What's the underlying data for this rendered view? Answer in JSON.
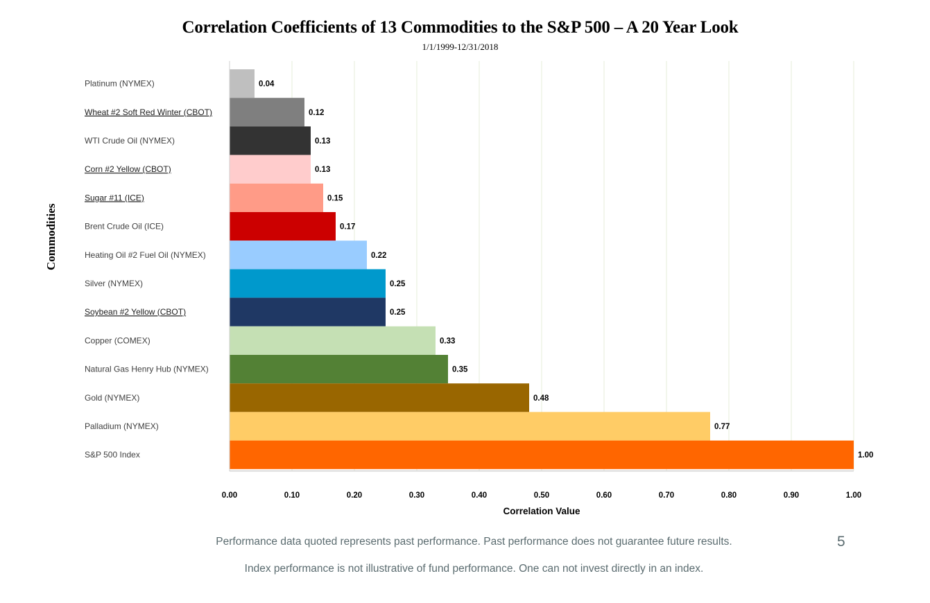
{
  "chart_data": {
    "type": "bar",
    "orientation": "horizontal",
    "title": "Correlation Coefficients of 13 Commodities to the S&P 500 – A 20 Year Look",
    "subtitle": "1/1/1999-12/31/2018",
    "xlabel": "Correlation Value",
    "ylabel": "Commodities",
    "xlim": [
      0,
      1
    ],
    "grid": true,
    "x_ticks": [
      "0.00",
      "0.10",
      "0.20",
      "0.30",
      "0.40",
      "0.50",
      "0.60",
      "0.70",
      "0.80",
      "0.90",
      "1.00"
    ],
    "categories": [
      {
        "name": "Platinum (NYMEX)",
        "underline": false
      },
      {
        "name": "Wheat #2 Soft Red Winter (CBOT)",
        "underline": true
      },
      {
        "name": "WTI Crude Oil (NYMEX)",
        "underline": false
      },
      {
        "name": "Corn #2 Yellow (CBOT)",
        "underline": true
      },
      {
        "name": "Sugar #11 (ICE)",
        "underline": true
      },
      {
        "name": "Brent Crude Oil (ICE)",
        "underline": false
      },
      {
        "name": "Heating Oil #2 Fuel Oil (NYMEX)",
        "underline": false
      },
      {
        "name": "Silver (NYMEX)",
        "underline": false
      },
      {
        "name": "Soybean #2 Yellow (CBOT)",
        "underline": true
      },
      {
        "name": "Copper (COMEX)",
        "underline": false
      },
      {
        "name": "Natural Gas Henry Hub (NYMEX)",
        "underline": false
      },
      {
        "name": "Gold (NYMEX)",
        "underline": false
      },
      {
        "name": "Palladium (NYMEX)",
        "underline": false
      },
      {
        "name": "S&P 500 Index",
        "underline": false
      }
    ],
    "values": [
      0.04,
      0.12,
      0.13,
      0.13,
      0.15,
      0.17,
      0.22,
      0.25,
      0.25,
      0.33,
      0.35,
      0.48,
      0.77,
      1.0
    ],
    "value_labels": [
      "0.04",
      "0.12",
      "0.13",
      "0.13",
      "0.15",
      "0.17",
      "0.22",
      "0.25",
      "0.25",
      "0.33",
      "0.35",
      "0.48",
      "0.77",
      "1.00"
    ],
    "colors": [
      "#bfbfbf",
      "#7f7f7f",
      "#333333",
      "#ffcccc",
      "#ff9b87",
      "#cc0000",
      "#99ccff",
      "#0099cc",
      "#1f3864",
      "#c5e0b4",
      "#538135",
      "#996600",
      "#ffcc66",
      "#ff6600"
    ]
  },
  "footer": {
    "line1": "Performance data quoted represents past performance. Past performance does not guarantee future results.",
    "line2": "Index performance is not illustrative of fund performance. One can not invest directly in an index.",
    "page_number": "5"
  }
}
